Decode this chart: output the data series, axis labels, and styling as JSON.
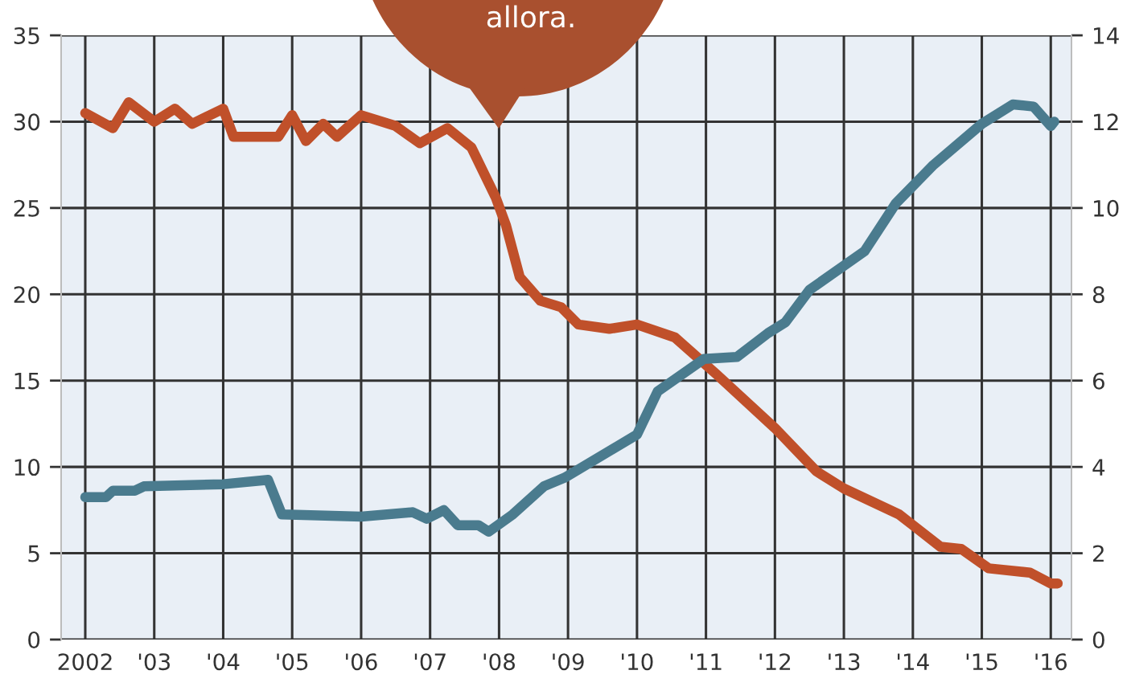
{
  "chart_data": {
    "type": "line",
    "xlim": [
      2001.65,
      2016.3
    ],
    "xticks": [
      {
        "value": 2002,
        "label": "2002"
      },
      {
        "value": 2003,
        "label": "'03"
      },
      {
        "value": 2004,
        "label": "'04"
      },
      {
        "value": 2005,
        "label": "'05"
      },
      {
        "value": 2006,
        "label": "'06"
      },
      {
        "value": 2007,
        "label": "'07"
      },
      {
        "value": 2008,
        "label": "'08"
      },
      {
        "value": 2009,
        "label": "'09"
      },
      {
        "value": 2010,
        "label": "'10"
      },
      {
        "value": 2011,
        "label": "'11"
      },
      {
        "value": 2012,
        "label": "'12"
      },
      {
        "value": 2013,
        "label": "'13"
      },
      {
        "value": 2014,
        "label": "'14"
      },
      {
        "value": 2015,
        "label": "'15"
      },
      {
        "value": 2016,
        "label": "'16"
      }
    ],
    "ylim": [
      0,
      35
    ],
    "yticks": [
      0,
      5,
      10,
      15,
      20,
      25,
      30,
      35
    ],
    "y2lim": [
      0,
      14
    ],
    "y2ticks": [
      0,
      2,
      4,
      6,
      8,
      10,
      12,
      14
    ],
    "grid": true,
    "line_style": "solid",
    "marker": "none",
    "annotations": [
      "allora."
    ],
    "series": [
      {
        "color": "#c0502a",
        "axis": "y2",
        "x": [
          2002.0,
          2002.4,
          2002.63,
          2003.0,
          2003.3,
          2003.55,
          2004.0,
          2004.15,
          2004.8,
          2005.0,
          2005.2,
          2005.45,
          2005.65,
          2006.0,
          2006.5,
          2006.85,
          2007.25,
          2007.6,
          2007.95,
          2008.1,
          2008.3,
          2008.6,
          2008.9,
          2009.15,
          2009.6,
          2010.0,
          2010.55,
          2011.15,
          2012.0,
          2012.6,
          2013.0,
          2013.8,
          2014.0,
          2014.4,
          2014.7,
          2015.1,
          2015.7,
          2016.0,
          2016.1
        ],
        "values": [
          12.2,
          11.85,
          12.45,
          12.0,
          12.3,
          11.95,
          12.3,
          11.65,
          11.65,
          12.15,
          11.55,
          11.95,
          11.65,
          12.15,
          11.9,
          11.5,
          11.85,
          11.4,
          10.25,
          9.6,
          8.4,
          7.85,
          7.7,
          7.3,
          7.2,
          7.3,
          7.0,
          6.15,
          4.9,
          3.9,
          3.5,
          2.9,
          2.65,
          2.15,
          2.1,
          1.65,
          1.55,
          1.3,
          1.3
        ]
      },
      {
        "color": "#4a7b8e",
        "axis": "y2",
        "x": [
          2002.0,
          2002.3,
          2002.4,
          2002.72,
          2002.85,
          2004.0,
          2004.65,
          2004.85,
          2006.0,
          2006.75,
          2006.95,
          2007.2,
          2007.4,
          2007.7,
          2007.85,
          2008.2,
          2008.65,
          2008.95,
          2010.0,
          2010.3,
          2010.97,
          2011.45,
          2011.9,
          2012.15,
          2012.5,
          2013.3,
          2013.75,
          2014.3,
          2015.0,
          2015.45,
          2015.75,
          2016.0,
          2016.05
        ],
        "values": [
          3.3,
          3.3,
          3.45,
          3.45,
          3.55,
          3.6,
          3.7,
          2.9,
          2.85,
          2.95,
          2.8,
          3.0,
          2.65,
          2.65,
          2.5,
          2.9,
          3.55,
          3.75,
          4.75,
          5.75,
          6.5,
          6.55,
          7.1,
          7.35,
          8.1,
          9.0,
          10.1,
          11.0,
          11.95,
          12.4,
          12.35,
          11.9,
          12.0
        ]
      }
    ]
  }
}
